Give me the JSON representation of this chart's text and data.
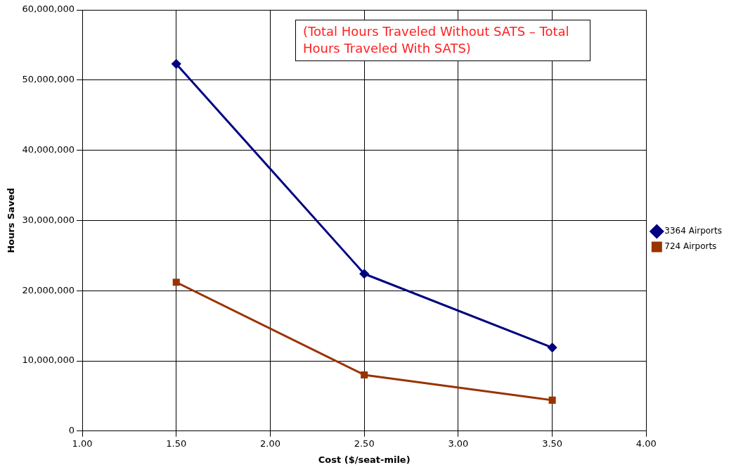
{
  "chart_data": {
    "type": "line",
    "xlabel": "Cost ($/seat-mile)",
    "ylabel": "Hours Saved",
    "annotations": [
      "(Total Hours Traveled Without SATS – Total Hours Traveled With SATS)"
    ],
    "x": [
      1.5,
      2.5,
      3.5
    ],
    "series": [
      {
        "name": "3364 Airports",
        "color": "#000080",
        "marker": "diamond",
        "values": [
          52300000,
          22400000,
          11900000
        ]
      },
      {
        "name": "724 Airports",
        "color": "#993300",
        "marker": "square",
        "values": [
          21200000,
          8000000,
          4400000
        ]
      }
    ],
    "xlim": [
      1,
      4
    ],
    "xticks": [
      {
        "value": 1,
        "label": "1.00"
      },
      {
        "value": 1.5,
        "label": "1.50"
      },
      {
        "value": 2,
        "label": "2.00"
      },
      {
        "value": 2.5,
        "label": "2.50"
      },
      {
        "value": 3,
        "label": "3.00"
      },
      {
        "value": 3.5,
        "label": "3.50"
      },
      {
        "value": 4,
        "label": "4.00"
      }
    ],
    "ylim": [
      0,
      60000000
    ],
    "yticks": [
      {
        "value": 0,
        "label": "0"
      },
      {
        "value": 10000000,
        "label": "10,000,000"
      },
      {
        "value": 20000000,
        "label": "20,000,000"
      },
      {
        "value": 30000000,
        "label": "30,000,000"
      },
      {
        "value": 40000000,
        "label": "40,000,000"
      },
      {
        "value": 50000000,
        "label": "50,000,000"
      },
      {
        "value": 60000000,
        "label": "60,000,000"
      }
    ],
    "grid": true,
    "legend": "right",
    "line_style": "solid"
  }
}
